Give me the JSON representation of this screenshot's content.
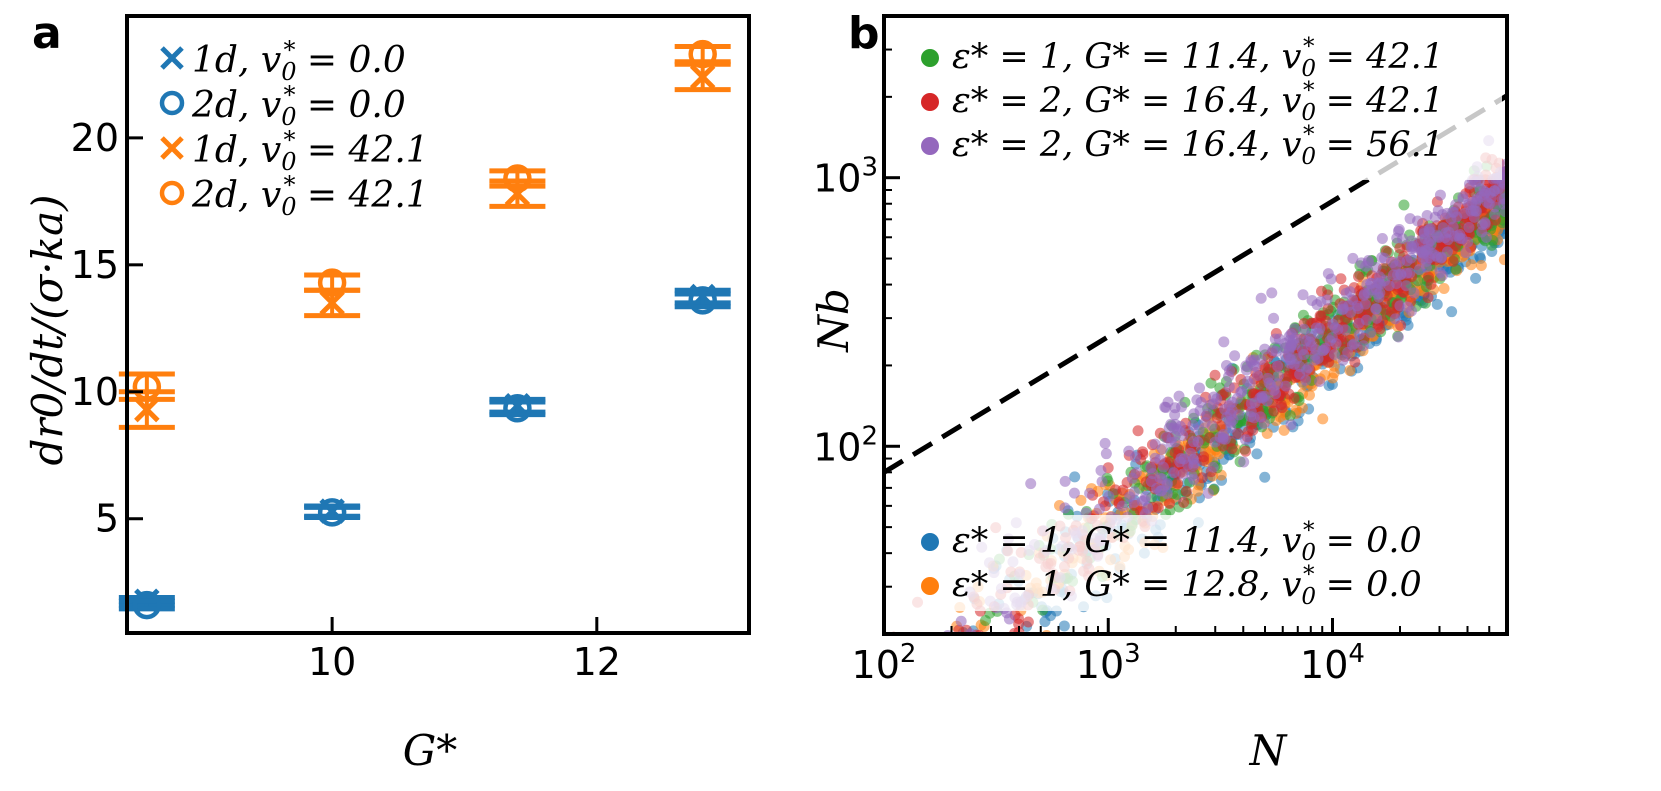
{
  "colors": {
    "blue": "#1f77b4",
    "orange": "#ff7f0e",
    "green": "#2ca02c",
    "red": "#d62728",
    "purple": "#9467bd",
    "axis": "#000000",
    "guide": "#000000",
    "guide_faded": "#cccccc"
  },
  "chart_data": [
    {
      "panel_label": "a",
      "type": "scatter",
      "xlabel": "G*",
      "ylabel": "dr0/dt/(σ·ka)",
      "xlim": [
        8.45,
        13.15
      ],
      "ylim": [
        0.5,
        24.8
      ],
      "xticks": [
        10,
        12
      ],
      "xtick_labels": [
        "10",
        "12"
      ],
      "yticks": [
        5,
        10,
        15,
        20
      ],
      "ytick_labels": [
        "5",
        "10",
        "15",
        "20"
      ],
      "legend_position": "top-left",
      "series": [
        {
          "name": "1d, v0* = 0.0",
          "label_main": "1d, v",
          "label_tail": " = 0.0",
          "marker": "x",
          "color": "blue",
          "points": [
            {
              "x": 8.6,
              "y": 1.75,
              "err": 0.15
            },
            {
              "x": 10.0,
              "y": 5.3,
              "err": 0.2
            },
            {
              "x": 11.4,
              "y": 9.45,
              "err": 0.25
            },
            {
              "x": 12.8,
              "y": 13.75,
              "err": 0.25
            }
          ]
        },
        {
          "name": "2d, v0* = 0.0",
          "label_main": "2d, v",
          "label_tail": " = 0.0",
          "marker": "o",
          "color": "blue",
          "points": [
            {
              "x": 8.6,
              "y": 1.6,
              "err": 0.15
            },
            {
              "x": 10.0,
              "y": 5.25,
              "err": 0.2
            },
            {
              "x": 11.4,
              "y": 9.35,
              "err": 0.25
            },
            {
              "x": 12.8,
              "y": 13.6,
              "err": 0.25
            }
          ]
        },
        {
          "name": "1d, v0* = 42.1",
          "label_main": "1d, v",
          "label_tail": " = 42.1",
          "marker": "x",
          "color": "orange",
          "points": [
            {
              "x": 8.6,
              "y": 9.3,
              "err": 0.7
            },
            {
              "x": 10.0,
              "y": 13.5,
              "err": 0.5
            },
            {
              "x": 11.4,
              "y": 17.8,
              "err": 0.5
            },
            {
              "x": 12.8,
              "y": 22.4,
              "err": 0.5
            }
          ]
        },
        {
          "name": "2d, v0* = 42.1",
          "label_main": "2d, v",
          "label_tail": " = 42.1",
          "marker": "o",
          "color": "orange",
          "points": [
            {
              "x": 8.6,
              "y": 10.2,
              "err": 0.5
            },
            {
              "x": 10.0,
              "y": 14.3,
              "err": 0.3
            },
            {
              "x": 11.4,
              "y": 18.4,
              "err": 0.3
            },
            {
              "x": 12.8,
              "y": 23.3,
              "err": 0.3
            }
          ]
        }
      ]
    },
    {
      "panel_label": "b",
      "type": "scatter",
      "scale": "log-log",
      "xlabel": "N",
      "ylabel": "Nb",
      "xlim": [
        100,
        60000
      ],
      "ylim": [
        20,
        4000
      ],
      "xticks": [
        100,
        1000,
        10000
      ],
      "xtick_labels": [
        {
          "base": "10",
          "exp": "2"
        },
        {
          "base": "10",
          "exp": "3"
        },
        {
          "base": "10",
          "exp": "4"
        }
      ],
      "yticks": [
        100,
        1000
      ],
      "ytick_labels": [
        {
          "base": "10",
          "exp": "2"
        },
        {
          "base": "10",
          "exp": "3"
        }
      ],
      "guide_line": {
        "style": "dashed",
        "x": [
          100,
          60000
        ],
        "y": [
          80,
          2020
        ]
      },
      "legend_top": [
        "eps1_G11.4_v42.1",
        "eps2_G16.4_v42.1",
        "eps2_G16.4_v56.1"
      ],
      "legend_bottom": [
        "eps1_G11.4_v0",
        "eps1_G12.8_v0"
      ],
      "series": [
        {
          "id": "eps1_G11.4_v0",
          "name": "ε* = 1, G* = 11.4, v0* = 0.0",
          "label_main": "ε* = 1, G* = 11.4, v",
          "label_tail": " = 0.0",
          "color": "blue",
          "x_range": [
            110,
            60000
          ],
          "fit": {
            "prefactor": 0.43,
            "exponent": 0.68
          },
          "scatter": 0.07,
          "count": 420
        },
        {
          "id": "eps1_G12.8_v0",
          "name": "ε* = 1, G* = 12.8, v0* = 0.0",
          "label_main": "ε* = 1, G* = 12.8, v",
          "label_tail": " = 0.0",
          "color": "orange",
          "x_range": [
            150,
            60000
          ],
          "fit": {
            "prefactor": 0.45,
            "exponent": 0.68
          },
          "scatter": 0.07,
          "count": 420
        },
        {
          "id": "eps1_G11.4_v42.1",
          "name": "ε* = 1, G* = 11.4, v0* = 42.1",
          "label_main": "ε* = 1, G* = 11.4, v",
          "label_tail": " = 42.1",
          "color": "green",
          "x_range": [
            200,
            60000
          ],
          "fit": {
            "prefactor": 0.5,
            "exponent": 0.68
          },
          "scatter": 0.08,
          "count": 380
        },
        {
          "id": "eps2_G16.4_v42.1",
          "name": "ε* = 2, G* = 16.4, v0* = 42.1",
          "label_main": "ε* = 2, G* = 16.4, v",
          "label_tail": " = 42.1",
          "color": "red",
          "x_range": [
            100,
            60000
          ],
          "fit": {
            "prefactor": 0.47,
            "exponent": 0.69
          },
          "scatter": 0.08,
          "count": 460
        },
        {
          "id": "eps2_G16.4_v56.1",
          "name": "ε* = 2, G* = 16.4, v0* = 56.1",
          "label_main": "ε* = 2, G* = 16.4, v",
          "label_tail": " = 56.1",
          "color": "purple",
          "x_range": [
            150,
            60000
          ],
          "fit": {
            "prefactor": 0.55,
            "exponent": 0.68
          },
          "scatter": 0.08,
          "count": 460
        }
      ]
    }
  ]
}
